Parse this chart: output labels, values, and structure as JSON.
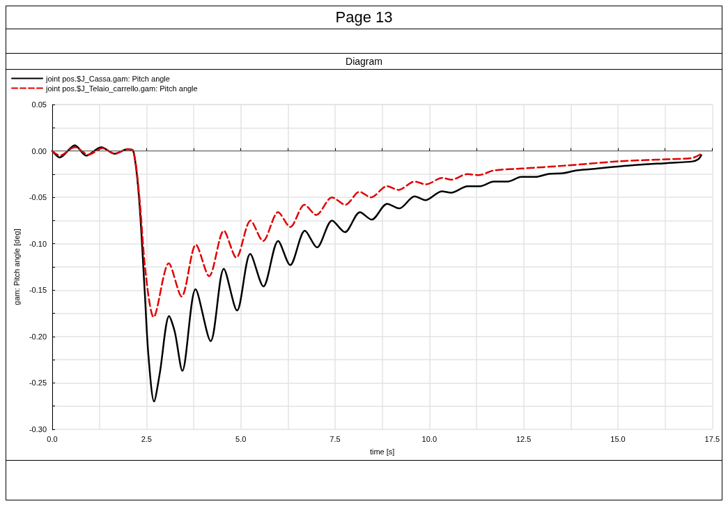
{
  "chart_data": {
    "type": "line",
    "title": "Page 13",
    "subtitle": "Diagram",
    "xlabel": "time [s]",
    "ylabel": "gam: Pitch angle [deg]",
    "xlim": [
      0,
      17.5
    ],
    "xticks": [
      {
        "value": 0,
        "label": "0.0"
      },
      {
        "value": 1.25,
        "label": null
      },
      {
        "value": 2.5,
        "label": "2.5"
      },
      {
        "value": 3.75,
        "label": null
      },
      {
        "value": 5,
        "label": "5.0"
      },
      {
        "value": 6.25,
        "label": null
      },
      {
        "value": 7.5,
        "label": "7.5"
      },
      {
        "value": 8.75,
        "label": null
      },
      {
        "value": 10,
        "label": "10.0"
      },
      {
        "value": 11.25,
        "label": null
      },
      {
        "value": 12.5,
        "label": "12.5"
      },
      {
        "value": 13.75,
        "label": null
      },
      {
        "value": 15,
        "label": "15.0"
      },
      {
        "value": 16.25,
        "label": null
      },
      {
        "value": 17.5,
        "label": "17.5"
      }
    ],
    "ylim": [
      -0.3,
      0.05
    ],
    "yticks": [
      {
        "value": -0.3,
        "label": "-0.30"
      },
      {
        "value": -0.275,
        "label": null
      },
      {
        "value": -0.25,
        "label": "-0.25"
      },
      {
        "value": -0.225,
        "label": null
      },
      {
        "value": -0.2,
        "label": "-0.20"
      },
      {
        "value": -0.175,
        "label": null
      },
      {
        "value": -0.15,
        "label": "-0.15"
      },
      {
        "value": -0.125,
        "label": null
      },
      {
        "value": -0.1,
        "label": "-0.10"
      },
      {
        "value": -0.075,
        "label": null
      },
      {
        "value": -0.05,
        "label": "-0.05"
      },
      {
        "value": -0.025,
        "label": null
      },
      {
        "value": 0,
        "label": "0.00"
      },
      {
        "value": 0.025,
        "label": null
      },
      {
        "value": 0.05,
        "label": "0.05"
      }
    ],
    "grid": true,
    "legend": "top left",
    "marker": "none",
    "ref_lines": [
      {
        "axis": "y",
        "value": 0,
        "color": "#555555"
      }
    ],
    "series": [
      {
        "name": "joint pos.$J_Cassa.gam: Pitch angle",
        "color": "#000000",
        "line_style": "solid",
        "x": [
          0,
          0.2,
          0.6,
          0.9,
          1.3,
          1.65,
          2.0,
          2.15,
          2.3,
          2.45,
          2.55,
          2.7,
          2.85,
          3.1,
          3.25,
          3.45,
          3.8,
          4.2,
          4.55,
          4.9,
          5.25,
          5.6,
          5.99,
          6.31,
          6.7,
          7.02,
          7.42,
          7.76,
          8.16,
          8.47,
          8.88,
          9.2,
          9.61,
          9.9,
          10.33,
          10.58,
          11.01,
          11.34,
          11.71,
          12.08,
          12.44,
          12.81,
          13.17,
          13.54,
          13.9,
          14.27,
          15.09,
          16.31,
          16.98,
          17.13,
          17.21
        ],
        "values": [
          0,
          -0.007,
          0.006,
          -0.005,
          0.004,
          -0.003,
          0.002,
          0,
          -0.05,
          -0.15,
          -0.22,
          -0.27,
          -0.24,
          -0.178,
          -0.195,
          -0.237,
          -0.149,
          -0.205,
          -0.127,
          -0.172,
          -0.111,
          -0.146,
          -0.097,
          -0.123,
          -0.086,
          -0.104,
          -0.075,
          -0.0875,
          -0.066,
          -0.074,
          -0.057,
          -0.062,
          -0.049,
          -0.053,
          -0.0435,
          -0.045,
          -0.038,
          -0.038,
          -0.033,
          -0.033,
          -0.028,
          -0.028,
          -0.0247,
          -0.024,
          -0.021,
          -0.0196,
          -0.0164,
          -0.013,
          -0.0113,
          -0.009,
          -0.0045
        ]
      },
      {
        "name": "joint pos.$J_Telaio_carrello.gam: Pitch angle",
        "color": "#e00000",
        "line_style": "dashed",
        "x": [
          0,
          0.2,
          0.6,
          0.96,
          1.33,
          1.66,
          2.0,
          2.15,
          2.3,
          2.48,
          2.69,
          3.09,
          3.43,
          3.81,
          4.16,
          4.55,
          4.88,
          5.26,
          5.59,
          5.99,
          6.31,
          6.69,
          7.0,
          7.42,
          7.77,
          8.15,
          8.45,
          8.88,
          9.18,
          9.61,
          9.91,
          10.34,
          10.58,
          11.01,
          11.31,
          11.71,
          12.44,
          13.54,
          15.09,
          16.31,
          16.98,
          17.21
        ],
        "values": [
          0,
          -0.005,
          0.004,
          -0.004,
          0.003,
          -0.003,
          0.002,
          0,
          -0.045,
          -0.133,
          -0.179,
          -0.121,
          -0.157,
          -0.101,
          -0.135,
          -0.086,
          -0.115,
          -0.075,
          -0.097,
          -0.066,
          -0.082,
          -0.058,
          -0.069,
          -0.05,
          -0.058,
          -0.044,
          -0.05,
          -0.038,
          -0.042,
          -0.033,
          -0.036,
          -0.029,
          -0.031,
          -0.025,
          -0.026,
          -0.021,
          -0.019,
          -0.016,
          -0.011,
          -0.009,
          -0.0075,
          -0.003
        ]
      }
    ]
  }
}
